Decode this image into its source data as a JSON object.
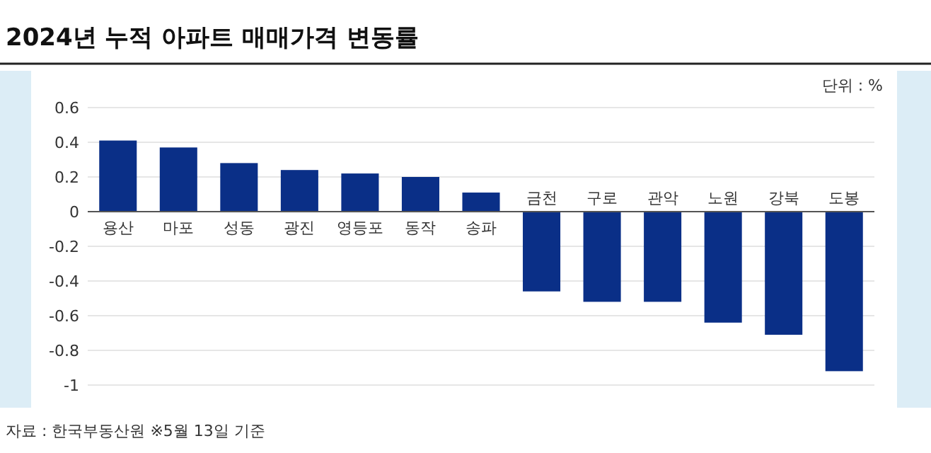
{
  "chart_data": {
    "type": "bar",
    "title": "2024년 누적 아파트 매매가격 변동률",
    "categories": [
      "용산",
      "마포",
      "성동",
      "광진",
      "영등포",
      "동작",
      "송파",
      "금천",
      "구로",
      "관악",
      "노원",
      "강북",
      "도봉"
    ],
    "values": [
      0.41,
      0.37,
      0.28,
      0.24,
      0.22,
      0.2,
      0.11,
      -0.46,
      -0.52,
      -0.52,
      -0.64,
      -0.71,
      -0.92
    ],
    "color": "#0a2f87",
    "ylim": [
      -1,
      0.6
    ],
    "yticks": [
      {
        "value": 0.6,
        "label": "0.6"
      },
      {
        "value": 0.4,
        "label": "0.4"
      },
      {
        "value": 0.2,
        "label": "0.2"
      },
      {
        "value": 0,
        "label": "0"
      },
      {
        "value": -0.2,
        "label": "-0.2"
      },
      {
        "value": -0.4,
        "label": "-0.4"
      },
      {
        "value": -0.6,
        "label": "-0.6"
      },
      {
        "value": -0.8,
        "label": "-0.8"
      },
      {
        "value": -1,
        "label": "-1"
      }
    ],
    "grid": "y",
    "annotations": [
      "단위 : %",
      "자료 : 한국부동산원 ※5월 13일 기준"
    ]
  }
}
